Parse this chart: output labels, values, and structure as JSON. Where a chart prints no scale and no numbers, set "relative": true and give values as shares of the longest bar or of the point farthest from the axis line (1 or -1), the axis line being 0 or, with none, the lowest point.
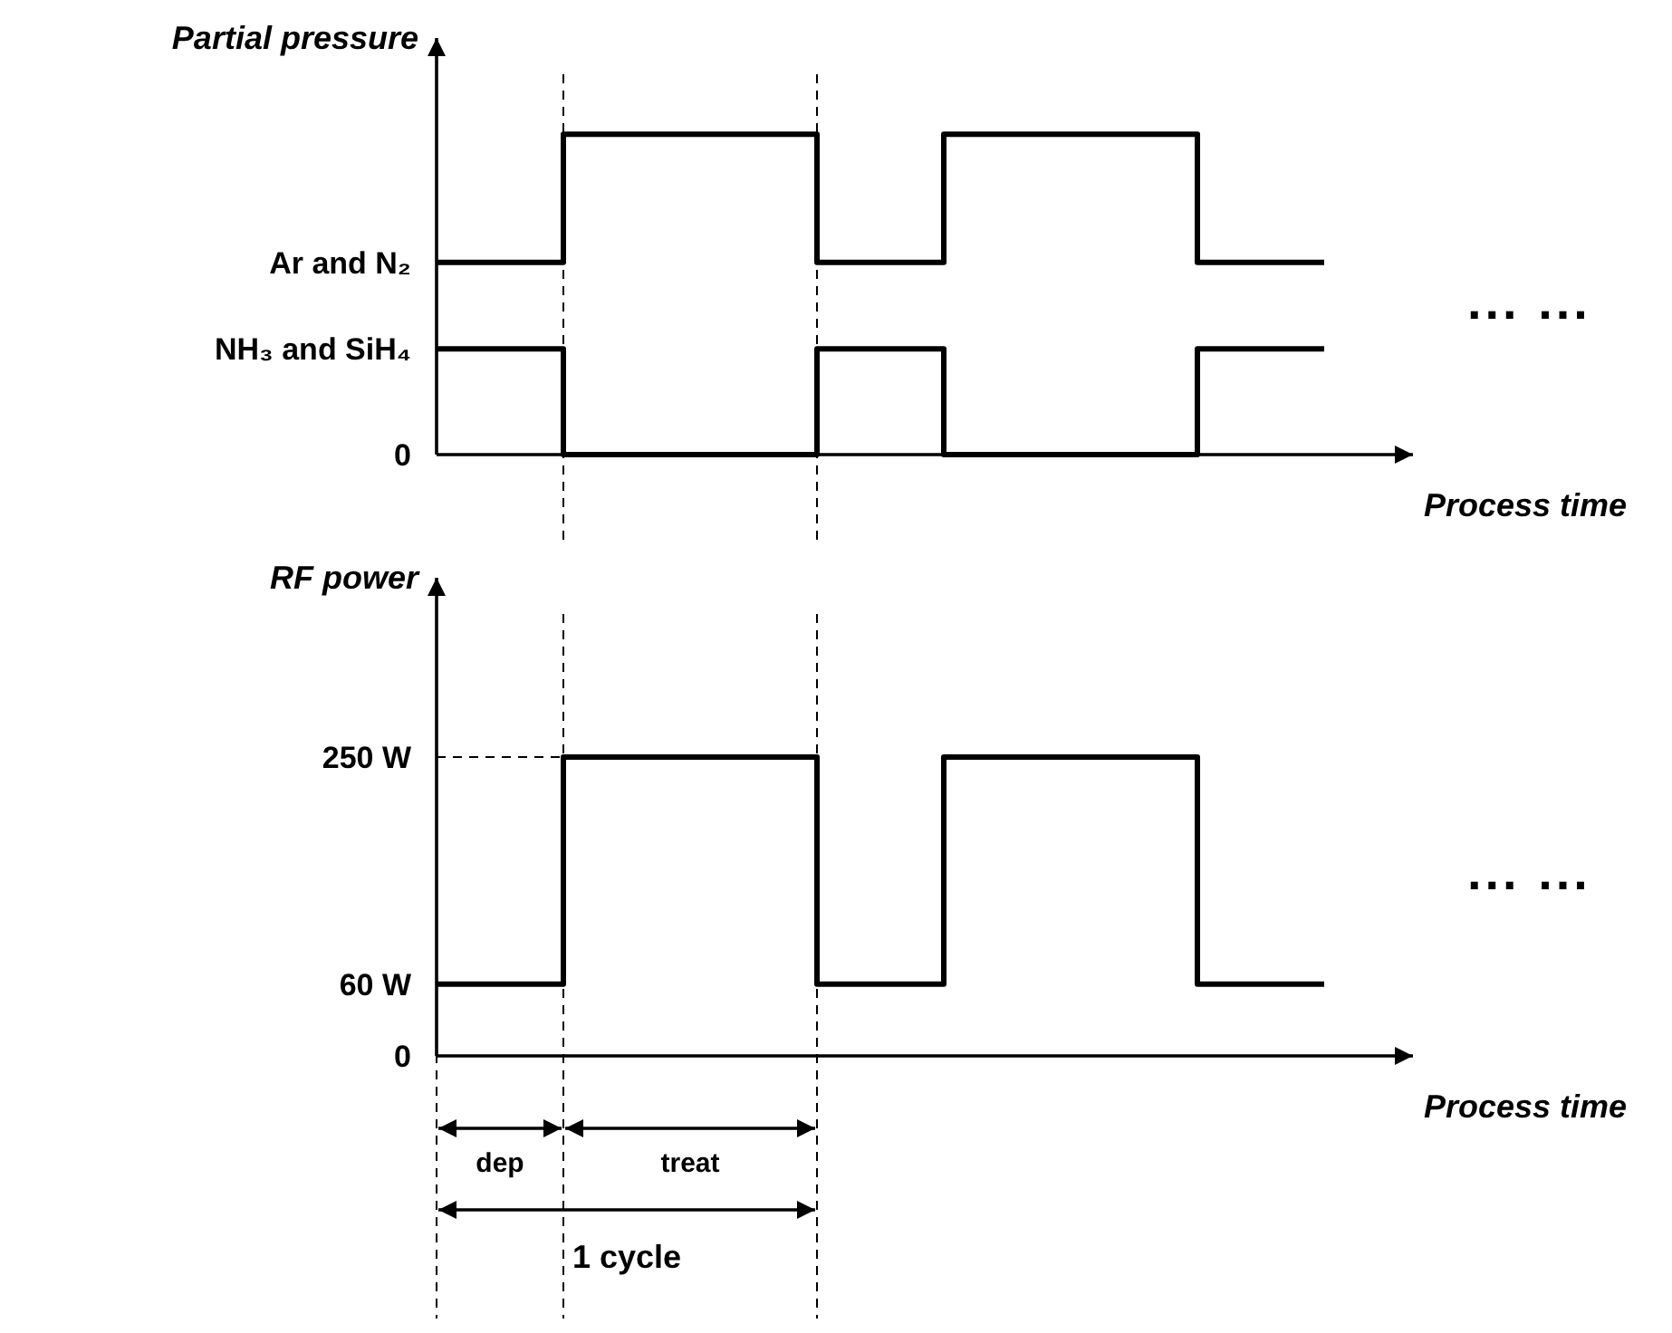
{
  "chart_data": [
    {
      "type": "step",
      "ylabel": "Partial pressure",
      "xlabel": "Process time",
      "categories": [
        null,
        null,
        null,
        null,
        null,
        null,
        null,
        null
      ],
      "relative": true,
      "series": [
        {
          "name": "Ar and N₂",
          "color": "#000000",
          "values": [
            0.6,
            1,
            1,
            0.6,
            1,
            1,
            0.6,
            0.6
          ]
        },
        {
          "name": "NH₃ and SiH₄",
          "color": "#000000",
          "values": [
            0.33,
            0,
            0,
            0.33,
            0,
            0,
            0.33,
            0.33
          ]
        }
      ],
      "annotations": [
        "... ...",
        "0"
      ]
    },
    {
      "type": "step",
      "ylabel": "RF power",
      "xlabel": "Process time",
      "categories": [
        null,
        null,
        null,
        null,
        null,
        null,
        null,
        null
      ],
      "ylim": [
        0,
        400
      ],
      "yticks": [
        {
          "value": 0,
          "label": "0"
        },
        {
          "value": 60,
          "label": "60 W"
        },
        {
          "value": 250,
          "label": "250 W"
        }
      ],
      "tick_labels": "y",
      "series": [
        {
          "color": "#000000",
          "values": [
            60,
            250,
            250,
            60,
            250,
            250,
            60,
            60
          ]
        }
      ],
      "ref_lines": [
        {
          "axis": "y",
          "value": 250,
          "line_style": "dashed"
        }
      ],
      "annotations": [
        "... ...",
        "dep",
        "treat",
        "1 cycle"
      ]
    }
  ]
}
